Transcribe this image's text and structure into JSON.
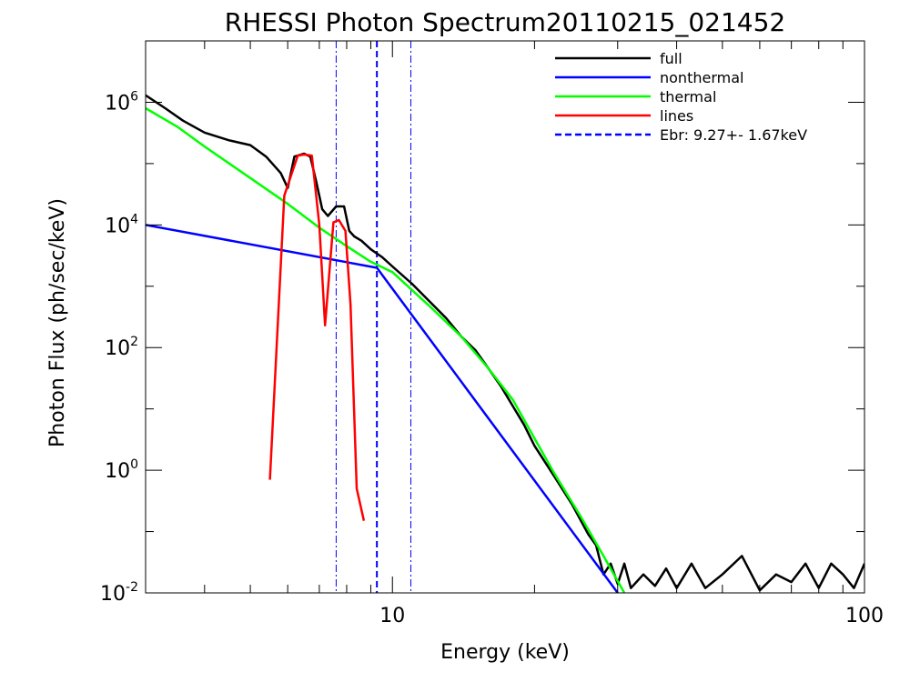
{
  "chart_data": {
    "type": "line",
    "title": "RHESSI Photon Spectrum20110215_021452",
    "xlabel": "Energy (keV)",
    "ylabel": "Photon Flux (ph/sec/keV)",
    "x_scale": "log",
    "y_scale": "log",
    "xlim": [
      3.0,
      100
    ],
    "ylim": [
      0.01,
      10000000
    ],
    "x_ticks": [
      {
        "value": 10,
        "label": "10"
      },
      {
        "value": 100,
        "label": "100"
      }
    ],
    "y_ticks": [
      {
        "value": 0.01,
        "base": "10",
        "exp": "-2"
      },
      {
        "value": 1,
        "base": "10",
        "exp": "0"
      },
      {
        "value": 100,
        "base": "10",
        "exp": "2"
      },
      {
        "value": 10000,
        "base": "10",
        "exp": "4"
      },
      {
        "value": 1000000,
        "base": "10",
        "exp": "6"
      }
    ],
    "grid": false,
    "legend_position": "top-right",
    "series": [
      {
        "name": "full",
        "color": "#000000",
        "x": [
          3.0,
          3.3,
          3.6,
          4.0,
          4.5,
          5.0,
          5.4,
          5.8,
          6.0,
          6.2,
          6.5,
          6.7,
          6.9,
          7.1,
          7.3,
          7.6,
          7.9,
          8.1,
          8.3,
          8.6,
          9.0,
          9.5,
          10,
          11,
          12,
          13,
          14,
          15,
          16,
          17,
          18,
          19,
          20,
          22,
          24,
          26,
          27,
          28,
          29,
          30,
          31,
          32,
          34,
          36,
          38,
          40,
          43,
          46,
          50,
          55,
          60,
          65,
          70,
          75,
          80,
          85,
          90,
          95,
          100
        ],
        "y": [
          1300000,
          800000,
          500000,
          320000,
          240000,
          200000,
          130000,
          70000,
          40000,
          130000,
          145000,
          130000,
          50000,
          18000,
          14000,
          20000,
          20000,
          8000,
          6500,
          5500,
          4000,
          3000,
          2100,
          1100,
          560,
          300,
          150,
          90,
          45,
          23,
          11,
          5.5,
          2.5,
          0.8,
          0.28,
          0.09,
          0.06,
          0.02,
          0.03,
          0.014,
          0.03,
          0.012,
          0.02,
          0.013,
          0.025,
          0.012,
          0.03,
          0.012,
          0.02,
          0.04,
          0.011,
          0.02,
          0.015,
          0.03,
          0.012,
          0.03,
          0.02,
          0.012,
          0.03
        ]
      },
      {
        "name": "nonthermal",
        "color": "#0000ff",
        "x": [
          3.0,
          9.27,
          30
        ],
        "y": [
          10000,
          2000,
          0.01
        ]
      },
      {
        "name": "thermal",
        "color": "#00ff00",
        "x": [
          3.0,
          3.5,
          4.0,
          5.0,
          6.0,
          7.0,
          8.0,
          9.0,
          10,
          12,
          14,
          16,
          18,
          20,
          22,
          25,
          28,
          31
        ],
        "y": [
          800000,
          400000,
          190000,
          58000,
          22000,
          9000,
          4500,
          2500,
          1700,
          470,
          150,
          45,
          14,
          3.3,
          0.9,
          0.18,
          0.04,
          0.01
        ]
      },
      {
        "name": "lines",
        "color": "#ff0000",
        "x": [
          5.5,
          5.9,
          6.3,
          6.5,
          6.75,
          7.0,
          7.2,
          7.5,
          7.7,
          7.95,
          8.15,
          8.4,
          8.7
        ],
        "y": [
          0.7,
          30000,
          135000,
          140000,
          135000,
          10000,
          230,
          11000,
          12000,
          8000,
          500,
          0.5,
          0.15
        ]
      }
    ],
    "vertical_lines": [
      {
        "x": 7.6,
        "color": "#0000ff",
        "style": "dash-dot"
      },
      {
        "x": 9.27,
        "color": "#0000ff",
        "style": "dashed"
      },
      {
        "x": 10.94,
        "color": "#0000ff",
        "style": "dash-dot"
      }
    ],
    "legend": [
      {
        "label": "full",
        "color": "#000000",
        "style": "solid"
      },
      {
        "label": "nonthermal",
        "color": "#0000ff",
        "style": "solid"
      },
      {
        "label": "thermal",
        "color": "#00ff00",
        "style": "solid"
      },
      {
        "label": "lines",
        "color": "#ff0000",
        "style": "solid"
      },
      {
        "label": "Ebr:   9.27+-  1.67keV",
        "color": "#0000ff",
        "style": "dashed"
      }
    ]
  }
}
